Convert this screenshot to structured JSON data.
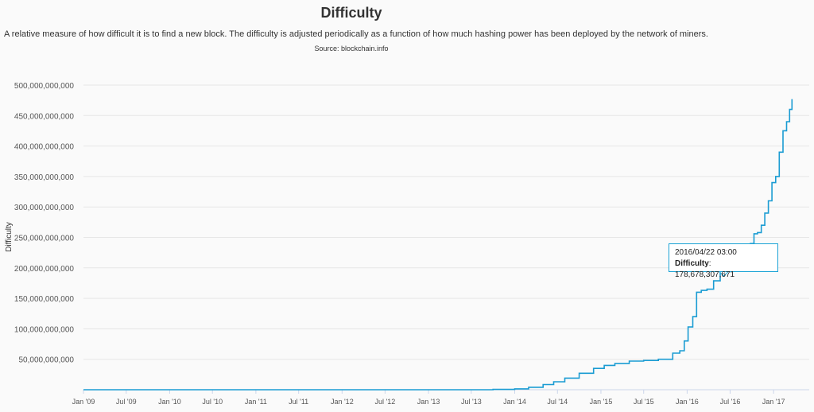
{
  "header": {
    "title": "Difficulty",
    "subtitle": "A relative measure of how difficult it is to find a new block. The difficulty is adjusted periodically as a function of how much hashing power has been deployed by the network of miners.",
    "source": "Source: blockchain.info"
  },
  "tooltip": {
    "date": "2016/04/22 03:00",
    "label": "Difficulty",
    "value": "178,678,307,671"
  },
  "colors": {
    "line": "#1a9cd3",
    "grid": "#e6e6e6",
    "tooltip_border": "#1ba3d6"
  },
  "chart_data": {
    "type": "line",
    "ylabel": "Difficulty",
    "ylim": [
      0,
      500000000000
    ],
    "xlim": [
      "2009-01-01",
      "2017-06-01"
    ],
    "grid": true,
    "y_ticks": [
      50000000000,
      100000000000,
      150000000000,
      200000000000,
      250000000000,
      300000000000,
      350000000000,
      400000000000,
      450000000000,
      500000000000
    ],
    "y_tick_labels": [
      "50,000,000,000",
      "100,000,000,000",
      "150,000,000,000",
      "200,000,000,000",
      "250,000,000,000",
      "300,000,000,000",
      "350,000,000,000",
      "400,000,000,000",
      "450,000,000,000",
      "500,000,000,000"
    ],
    "x_ticks": [
      "2009-01-01",
      "2009-07-01",
      "2010-01-01",
      "2010-07-01",
      "2011-01-01",
      "2011-07-01",
      "2012-01-01",
      "2012-07-01",
      "2013-01-01",
      "2013-07-01",
      "2014-01-01",
      "2014-07-01",
      "2015-01-01",
      "2015-07-01",
      "2016-01-01",
      "2016-07-01",
      "2017-01-01"
    ],
    "x_tick_labels": [
      "Jan '09",
      "Jul '09",
      "Jan '10",
      "Jul '10",
      "Jan '11",
      "Jul '11",
      "Jan '12",
      "Jul '12",
      "Jan '13",
      "Jul '13",
      "Jan '14",
      "Jul '14",
      "Jan '15",
      "Jul '15",
      "Jan '16",
      "Jul '16",
      "Jan '17"
    ],
    "series": [
      {
        "name": "Difficulty",
        "x": [
          "2009-01-01",
          "2013-01-01",
          "2013-07-01",
          "2013-10-01",
          "2014-01-01",
          "2014-03-01",
          "2014-05-01",
          "2014-06-15",
          "2014-08-01",
          "2014-10-01",
          "2014-12-01",
          "2015-01-15",
          "2015-03-01",
          "2015-05-01",
          "2015-07-01",
          "2015-09-01",
          "2015-11-01",
          "2015-12-01",
          "2015-12-20",
          "2016-01-05",
          "2016-01-25",
          "2016-02-10",
          "2016-03-01",
          "2016-03-25",
          "2016-04-22",
          "2016-05-20",
          "2016-06-10",
          "2016-06-25",
          "2016-07-15",
          "2016-08-05",
          "2016-08-25",
          "2016-09-10",
          "2016-09-25",
          "2016-10-10",
          "2016-10-25",
          "2016-11-10",
          "2016-11-25",
          "2016-12-10",
          "2016-12-25",
          "2017-01-10",
          "2017-01-25",
          "2017-02-10",
          "2017-02-25",
          "2017-03-10",
          "2017-03-20"
        ],
        "values": [
          0,
          0,
          50000000,
          500000000,
          1400000000,
          4000000000,
          8500000000,
          13000000000,
          19000000000,
          27000000000,
          35000000000,
          40000000000,
          43000000000,
          47000000000,
          48000000000,
          50000000000,
          60000000000,
          64000000000,
          80000000000,
          103000000000,
          120000000000,
          160000000000,
          163000000000,
          165000000000,
          178678307671,
          194000000000,
          199000000000,
          201000000000,
          210000000000,
          216000000000,
          218000000000,
          220000000000,
          240000000000,
          256000000000,
          258000000000,
          270000000000,
          290000000000,
          310000000000,
          340000000000,
          350000000000,
          390000000000,
          425000000000,
          440000000000,
          460000000000,
          477000000000
        ]
      }
    ]
  }
}
